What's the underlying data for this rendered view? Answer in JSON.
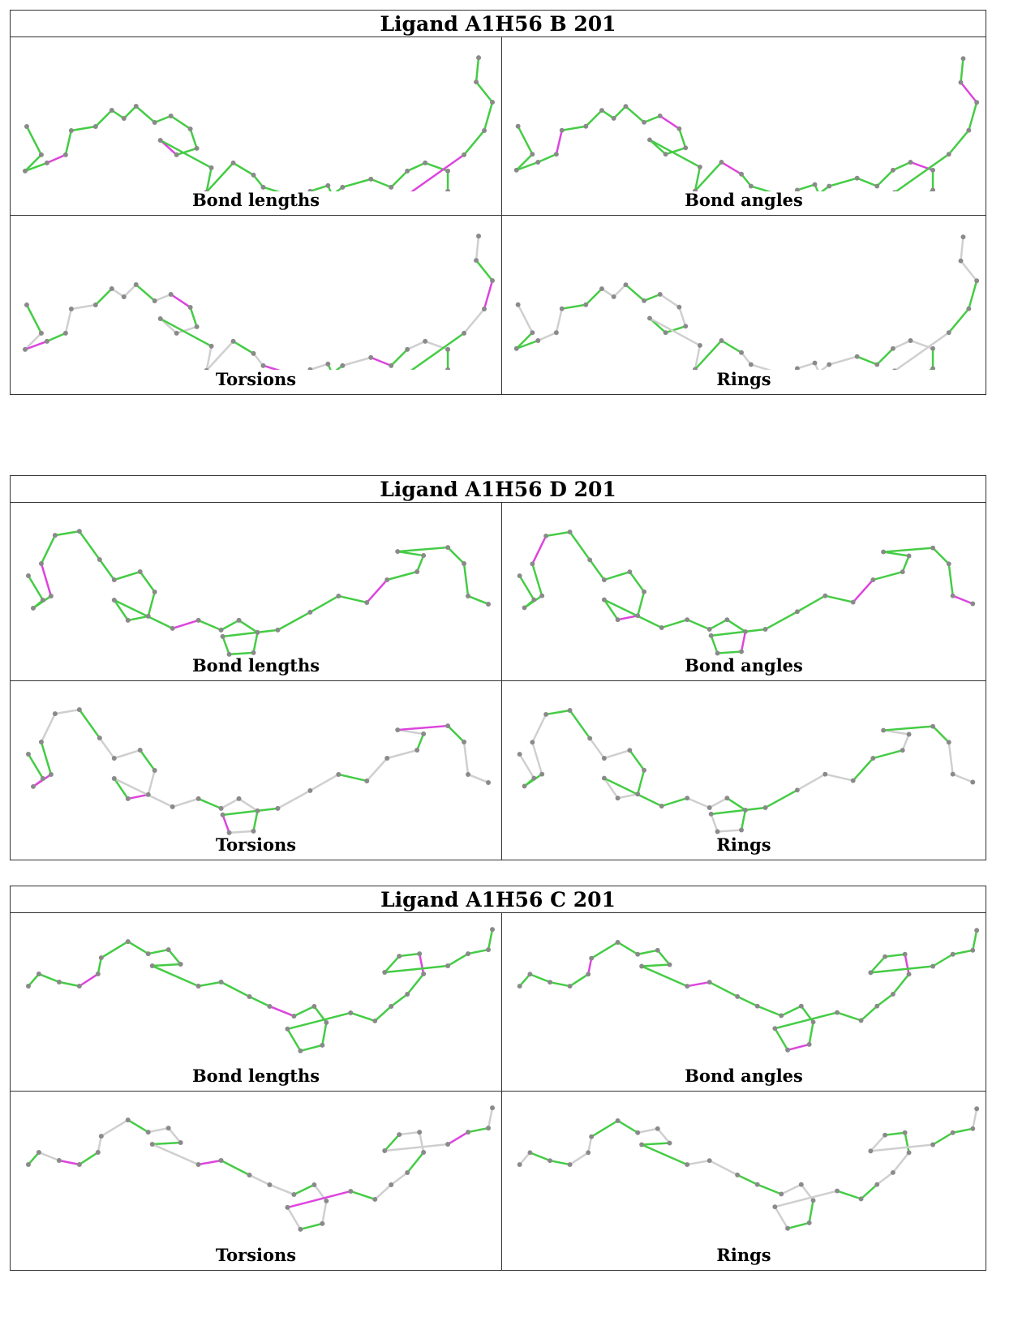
{
  "colors": {
    "good": "#44cc44",
    "outlier": "#dd44dd",
    "neutral": "#cfcfcf",
    "atom": "#8a8a8a"
  },
  "panels": [
    {
      "title": "Ligand A1H56 B 201",
      "cells": [
        {
          "caption": "Bond lengths"
        },
        {
          "caption": "Bond angles"
        },
        {
          "caption": "Torsions"
        },
        {
          "caption": "Rings"
        }
      ]
    },
    {
      "title": "Ligand A1H56 D 201",
      "cells": [
        {
          "caption": "Bond lengths"
        },
        {
          "caption": "Bond angles"
        },
        {
          "caption": "Torsions"
        },
        {
          "caption": "Rings"
        }
      ]
    },
    {
      "title": "Ligand A1H56 C 201",
      "cells": [
        {
          "caption": "Bond lengths"
        },
        {
          "caption": "Bond angles"
        },
        {
          "caption": "Torsions"
        },
        {
          "caption": "Rings"
        }
      ]
    }
  ]
}
